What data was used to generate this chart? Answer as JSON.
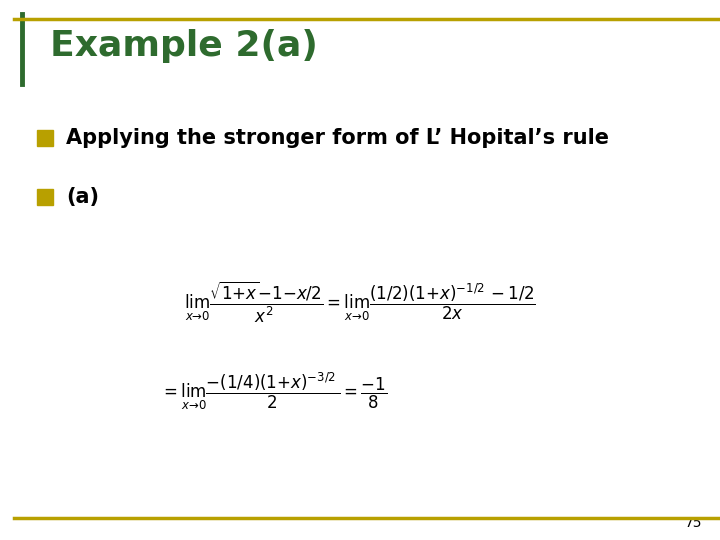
{
  "title": "Example 2(a)",
  "title_color": "#2E6B2E",
  "background_color": "#FFFFFF",
  "border_color_top": "#B8A000",
  "border_color_bottom": "#B8A000",
  "bullet_color": "#B8A000",
  "bullet1": "Applying the stronger form of L’ Hopital’s rule",
  "bullet2": "(a)",
  "text_color": "#000000",
  "page_number": "75"
}
